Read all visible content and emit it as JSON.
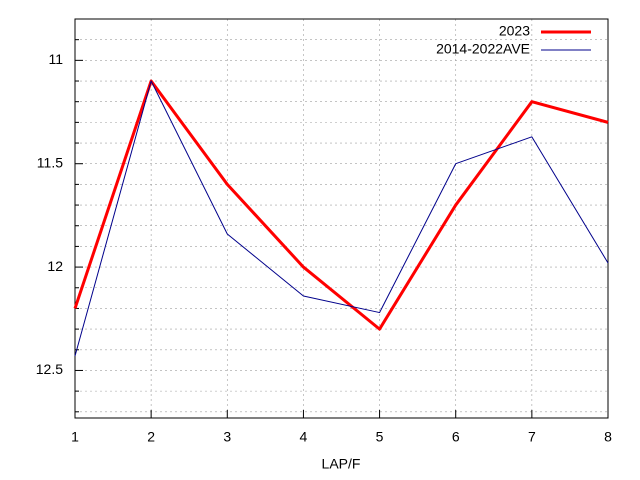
{
  "chart_data": {
    "type": "line",
    "x_label": "LAP/F",
    "x": [
      1,
      2,
      3,
      4,
      5,
      6,
      7,
      8
    ],
    "series": [
      {
        "name": "2023",
        "color": "#ff0000",
        "values": [
          12.2,
          11.1,
          11.6,
          12.0,
          12.3,
          11.7,
          11.2,
          11.3
        ]
      },
      {
        "name": "2014-2022AVE",
        "color": "#00008b",
        "values": [
          12.43,
          11.1,
          11.84,
          12.14,
          12.22,
          11.5,
          11.37,
          11.98
        ]
      }
    ],
    "xlim": [
      1,
      8
    ],
    "xticks": [
      1,
      2,
      3,
      4,
      5,
      6,
      7,
      8
    ],
    "ylim": [
      10.8,
      12.73
    ],
    "y_inverted": true,
    "yticks": [
      11,
      11.5,
      12,
      12.5
    ],
    "minor_yticks": [
      10.9,
      11.1,
      11.2,
      11.3,
      11.4,
      11.6,
      11.7,
      11.8,
      11.9,
      12.1,
      12.2,
      12.3,
      12.4,
      12.6,
      12.7
    ],
    "grid": true,
    "legend": "top-right"
  }
}
